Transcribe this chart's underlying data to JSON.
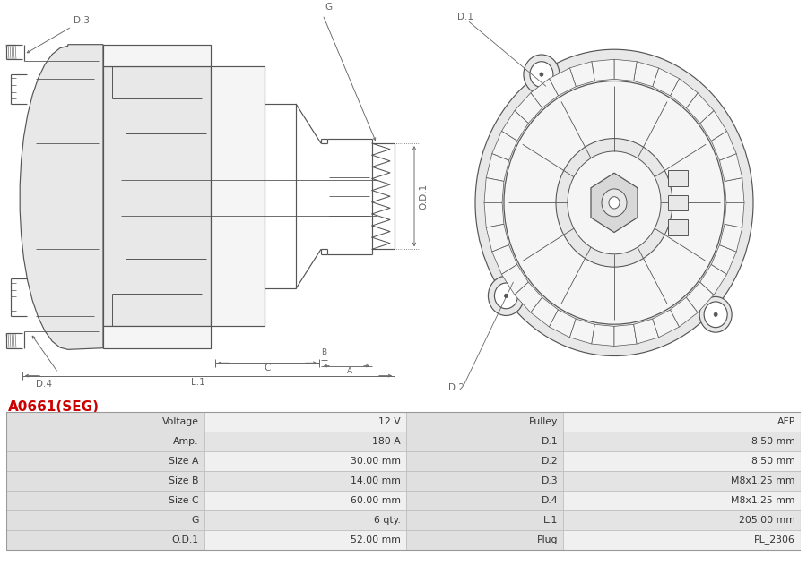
{
  "title": "A0661(SEG)",
  "title_color": "#cc0000",
  "bg_color": "#ffffff",
  "table_row_light": "#f0f0f0",
  "table_row_dark": "#e4e4e4",
  "table_label_bg": "#e0e0e0",
  "table_border_color": "#bbbbbb",
  "line_color": "#555555",
  "dim_color": "#666666",
  "fill_light": "#f5f5f5",
  "fill_mid": "#e8e8e8",
  "fill_dark": "#d8d8d8",
  "table_data": [
    [
      "Voltage",
      "12 V",
      "Pulley",
      "AFP"
    ],
    [
      "Amp.",
      "180 A",
      "D.1",
      "8.50 mm"
    ],
    [
      "Size A",
      "30.00 mm",
      "D.2",
      "8.50 mm"
    ],
    [
      "Size B",
      "14.00 mm",
      "D.3",
      "M8x1.25 mm"
    ],
    [
      "Size C",
      "60.00 mm",
      "D.4",
      "M8x1.25 mm"
    ],
    [
      "G",
      "6 qty.",
      "L.1",
      "205.00 mm"
    ],
    [
      "O.D.1",
      "52.00 mm",
      "Plug",
      "PL_2306"
    ]
  ]
}
